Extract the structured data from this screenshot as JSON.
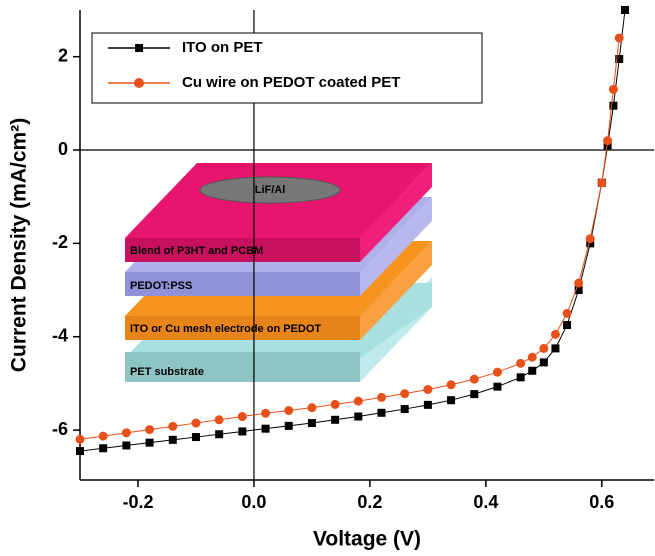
{
  "chart_data": {
    "type": "line",
    "xlabel": "Voltage (V)",
    "ylabel": "Current Density (mA/cm²)",
    "x": [
      -0.3,
      -0.26,
      -0.22,
      -0.18,
      -0.14,
      -0.1,
      -0.06,
      -0.02,
      0.02,
      0.06,
      0.1,
      0.14,
      0.18,
      0.22,
      0.26,
      0.3,
      0.34,
      0.38,
      0.42,
      0.46,
      0.48,
      0.5,
      0.52,
      0.54,
      0.56,
      0.58,
      0.6,
      0.61,
      0.62,
      0.63,
      0.64
    ],
    "series": [
      {
        "name": "ITO on PET",
        "color": "#000000",
        "marker": "square",
        "values": [
          -6.45,
          -6.39,
          -6.33,
          -6.27,
          -6.21,
          -6.15,
          -6.09,
          -6.03,
          -5.97,
          -5.91,
          -5.85,
          -5.78,
          -5.71,
          -5.63,
          -5.55,
          -5.46,
          -5.36,
          -5.23,
          -5.07,
          -4.87,
          -4.73,
          -4.55,
          -4.25,
          -3.75,
          -3.0,
          -2.0,
          -0.7,
          0.1,
          0.95,
          1.95,
          3.0
        ]
      },
      {
        "name": "Cu wire on PEDOT coated PET",
        "color": "#e8501a",
        "marker": "circle",
        "values": [
          -6.2,
          -6.13,
          -6.06,
          -5.99,
          -5.92,
          -5.85,
          -5.78,
          -5.71,
          -5.64,
          -5.58,
          -5.52,
          -5.45,
          -5.38,
          -5.3,
          -5.22,
          -5.13,
          -5.03,
          -4.91,
          -4.76,
          -4.57,
          -4.44,
          -4.25,
          -3.95,
          -3.5,
          -2.85,
          -1.9,
          -0.7,
          0.2,
          1.3,
          2.4,
          null
        ]
      }
    ],
    "xlim": [
      -0.3,
      0.69
    ],
    "ylim": [
      -7.07,
      3.0
    ],
    "xticks": [
      -0.2,
      {
        "value": 0,
        "label": "0.0"
      },
      0.2,
      0.4,
      0.6
    ],
    "yticks": [
      2,
      0,
      -2,
      -4,
      -6
    ],
    "annotations": [
      "LiF/Al",
      "Blend of P3HT and PCBM",
      "PEDOT:PSS",
      "ITO or Cu mesh electrode on PEDOT",
      "PET substrate"
    ]
  }
}
